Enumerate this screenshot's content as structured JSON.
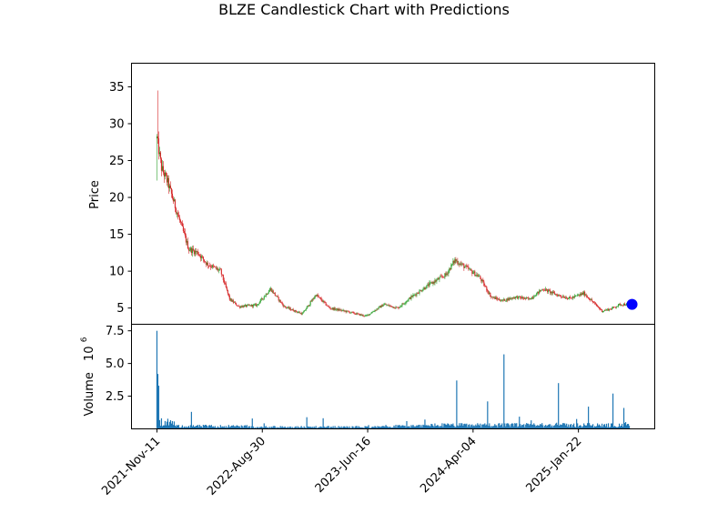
{
  "chart_data": {
    "type": "candlestick",
    "title": "BLZE Candlestick Chart with Predictions",
    "price_panel": {
      "ylabel": "Price",
      "ylim": [
        2.8,
        38.2
      ],
      "yticks": [
        5,
        10,
        15,
        20,
        25,
        30,
        35
      ],
      "ytick_labels": [
        "5",
        "10",
        "15",
        "20",
        "25",
        "30",
        "35"
      ],
      "up_color": "#2ca02c",
      "down_color": "#d62728",
      "close_series": [
        {
          "x": 0,
          "close": 28.0
        },
        {
          "x": 5,
          "close": 24.0
        },
        {
          "x": 12,
          "close": 22.0
        },
        {
          "x": 22,
          "close": 18.0
        },
        {
          "x": 35,
          "close": 13.0
        },
        {
          "x": 45,
          "close": 12.5
        },
        {
          "x": 55,
          "close": 11.0
        },
        {
          "x": 70,
          "close": 10.0
        },
        {
          "x": 80,
          "close": 6.2
        },
        {
          "x": 90,
          "close": 5.2
        },
        {
          "x": 110,
          "close": 5.4
        },
        {
          "x": 125,
          "close": 7.6
        },
        {
          "x": 140,
          "close": 5.2
        },
        {
          "x": 160,
          "close": 4.2
        },
        {
          "x": 175,
          "close": 6.8
        },
        {
          "x": 190,
          "close": 5.0
        },
        {
          "x": 210,
          "close": 4.5
        },
        {
          "x": 230,
          "close": 3.9
        },
        {
          "x": 250,
          "close": 5.5
        },
        {
          "x": 265,
          "close": 5.0
        },
        {
          "x": 280,
          "close": 6.5
        },
        {
          "x": 300,
          "close": 8.2
        },
        {
          "x": 318,
          "close": 9.5
        },
        {
          "x": 328,
          "close": 11.5
        },
        {
          "x": 340,
          "close": 10.5
        },
        {
          "x": 355,
          "close": 9.2
        },
        {
          "x": 368,
          "close": 6.5
        },
        {
          "x": 380,
          "close": 6.0
        },
        {
          "x": 395,
          "close": 6.5
        },
        {
          "x": 410,
          "close": 6.2
        },
        {
          "x": 425,
          "close": 7.6
        },
        {
          "x": 440,
          "close": 6.8
        },
        {
          "x": 455,
          "close": 6.3
        },
        {
          "x": 470,
          "close": 7.0
        },
        {
          "x": 480,
          "close": 5.8
        },
        {
          "x": 490,
          "close": 4.6
        },
        {
          "x": 500,
          "close": 4.9
        },
        {
          "x": 510,
          "close": 5.5
        },
        {
          "x": 520,
          "close": 5.5
        }
      ],
      "prediction": {
        "x": 520,
        "value": 5.5,
        "color": "#0000ff"
      }
    },
    "volume_panel": {
      "ylabel": "Volume",
      "scale_label": "10",
      "scale_exponent": "6",
      "ylim": [
        0,
        8.0
      ],
      "yticks": [
        2.5,
        5.0,
        7.5
      ],
      "ytick_labels": [
        "2.5",
        "5.0",
        "7.5"
      ],
      "bar_color": "#1f77b4",
      "spikes": [
        {
          "x": 0,
          "value": 7.5
        },
        {
          "x": 1,
          "value": 4.2
        },
        {
          "x": 2,
          "value": 3.3
        },
        {
          "x": 38,
          "value": 1.3
        },
        {
          "x": 330,
          "value": 3.7
        },
        {
          "x": 364,
          "value": 2.1
        },
        {
          "x": 382,
          "value": 5.7
        },
        {
          "x": 442,
          "value": 3.5
        },
        {
          "x": 475,
          "value": 1.7
        },
        {
          "x": 502,
          "value": 2.7
        },
        {
          "x": 514,
          "value": 1.6
        }
      ]
    },
    "x_axis": {
      "type": "date",
      "xlim": [
        -28,
        548
      ],
      "ticks": [
        0,
        116,
        232,
        348,
        464
      ],
      "tick_labels": [
        "2021-Nov-11",
        "2022-Aug-30",
        "2023-Jun-16",
        "2024-Apr-04",
        "2025-Jan-22"
      ]
    }
  }
}
